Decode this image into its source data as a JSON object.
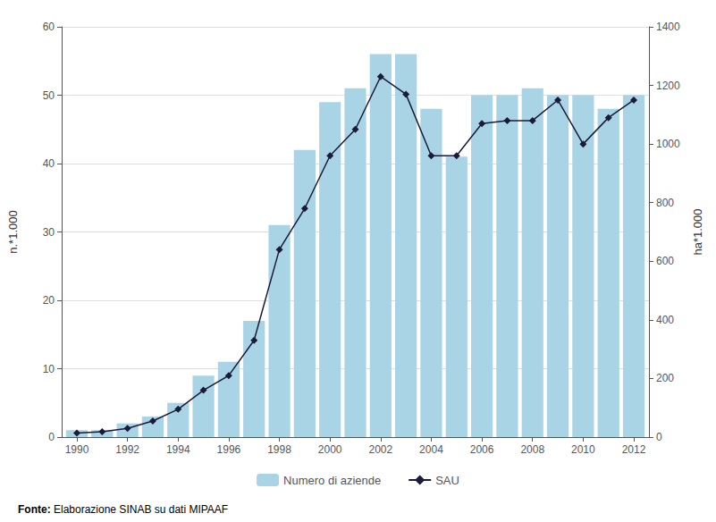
{
  "chart_data": {
    "type": "bar",
    "x": [
      1990,
      1991,
      1992,
      1993,
      1994,
      1995,
      1996,
      1997,
      1998,
      1999,
      2000,
      2001,
      2002,
      2003,
      2004,
      2005,
      2006,
      2007,
      2008,
      2009,
      2010,
      2011,
      2012
    ],
    "series": [
      {
        "name": "Numero di aziende",
        "type": "bar",
        "color": "#a8d4e6",
        "values": [
          1.0,
          1.0,
          2.0,
          3.0,
          5.0,
          9.0,
          11.0,
          17.0,
          31.0,
          42.0,
          49.0,
          51.0,
          56.0,
          56.0,
          48.0,
          41.0,
          50.0,
          50.0,
          51.0,
          50.0,
          50.0,
          48.0,
          50.0
        ]
      },
      {
        "name": "SAU",
        "type": "line",
        "axis": "y2",
        "color": "#1a1a3a",
        "marker": "diamond",
        "values": [
          14,
          18,
          30,
          55,
          95,
          160,
          210,
          330,
          640,
          780,
          960,
          1050,
          1230,
          1170,
          960,
          960,
          1070,
          1080,
          1080,
          1150,
          1000,
          1090,
          1150
        ]
      }
    ],
    "ylabel": "n.*1.000",
    "y2label": "ha*1.000",
    "xlim": [
      1989.4,
      2012.6
    ],
    "xticks": [
      1990,
      1992,
      1994,
      1996,
      1998,
      2000,
      2002,
      2004,
      2006,
      2008,
      2010,
      2012
    ],
    "ylim": [
      0,
      60
    ],
    "yticks": [
      0,
      10,
      20,
      30,
      40,
      50,
      60
    ],
    "y2lim": [
      0,
      1400
    ],
    "y2ticks": [
      0,
      200,
      400,
      600,
      800,
      1000,
      1200,
      1400
    ],
    "grid": true,
    "legend": "bottom",
    "annotations": [
      "Fonte:",
      " Elaborazione SINAB su dati MIPAAF"
    ]
  }
}
